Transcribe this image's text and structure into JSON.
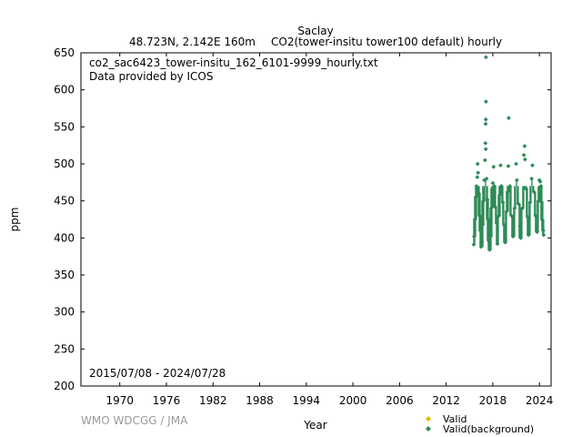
{
  "chart_data": {
    "type": "scatter",
    "title": "Saclay",
    "subtitle_left": "48.723N, 2.142E 160m",
    "subtitle_right": "CO2(tower-insitu tower100 default) hourly",
    "filename": "co2_sac6423_tower-insitu_162_6101-9999_hourly.txt",
    "provider": "Data provided by ICOS",
    "date_range": "2015/07/08 - 2024/07/28",
    "xlabel": "Year",
    "ylabel": "ppm",
    "xlim": [
      1965,
      2025.5
    ],
    "ylim": [
      200,
      650
    ],
    "xticks": [
      "1970",
      "1976",
      "1982",
      "1988",
      "1994",
      "2000",
      "2006",
      "2012",
      "2018",
      "2024"
    ],
    "yticks": [
      "200",
      "250",
      "300",
      "350",
      "400",
      "450",
      "500",
      "550",
      "600",
      "650"
    ],
    "grid": false,
    "legend_position": "bottom-right",
    "series": [
      {
        "name": "Valid",
        "color": "#e6b800",
        "marker": "diamond",
        "points": []
      },
      {
        "name": "Valid(background)",
        "color": "#2e8b57",
        "marker": "diamond",
        "points": [
          [
            2015.55,
            391
          ],
          [
            2015.6,
            402
          ],
          [
            2015.7,
            425
          ],
          [
            2015.8,
            455
          ],
          [
            2015.9,
            470
          ],
          [
            2016.0,
            482
          ],
          [
            2016.05,
            500
          ],
          [
            2016.1,
            488
          ],
          [
            2016.2,
            460
          ],
          [
            2016.3,
            430
          ],
          [
            2016.4,
            410
          ],
          [
            2016.5,
            388
          ],
          [
            2016.6,
            395
          ],
          [
            2016.7,
            418
          ],
          [
            2016.8,
            450
          ],
          [
            2016.9,
            478
          ],
          [
            2017.0,
            505
          ],
          [
            2017.05,
            528
          ],
          [
            2017.1,
            520
          ],
          [
            2017.08,
            554
          ],
          [
            2017.1,
            560
          ],
          [
            2017.12,
            584
          ],
          [
            2017.12,
            644
          ],
          [
            2017.2,
            480
          ],
          [
            2017.3,
            452
          ],
          [
            2017.4,
            425
          ],
          [
            2017.5,
            396
          ],
          [
            2017.6,
            384
          ],
          [
            2017.7,
            402
          ],
          [
            2017.8,
            440
          ],
          [
            2017.9,
            466
          ],
          [
            2018.0,
            474
          ],
          [
            2018.1,
            496
          ],
          [
            2018.2,
            470
          ],
          [
            2018.3,
            442
          ],
          [
            2018.5,
            420
          ],
          [
            2018.6,
            392
          ],
          [
            2018.8,
            430
          ],
          [
            2018.9,
            458
          ],
          [
            2019.0,
            498
          ],
          [
            2019.1,
            470
          ],
          [
            2019.3,
            448
          ],
          [
            2019.5,
            417
          ],
          [
            2019.6,
            394
          ],
          [
            2019.8,
            436
          ],
          [
            2019.9,
            462
          ],
          [
            2020.0,
            497
          ],
          [
            2020.05,
            562
          ],
          [
            2020.2,
            470
          ],
          [
            2020.4,
            430
          ],
          [
            2020.6,
            402
          ],
          [
            2020.8,
            440
          ],
          [
            2021.0,
            500
          ],
          [
            2021.1,
            478
          ],
          [
            2021.3,
            446
          ],
          [
            2021.5,
            416
          ],
          [
            2021.6,
            400
          ],
          [
            2021.8,
            440
          ],
          [
            2022.0,
            512
          ],
          [
            2022.1,
            524
          ],
          [
            2022.15,
            506
          ],
          [
            2022.3,
            466
          ],
          [
            2022.5,
            428
          ],
          [
            2022.6,
            404
          ],
          [
            2022.8,
            448
          ],
          [
            2023.0,
            480
          ],
          [
            2023.1,
            498
          ],
          [
            2023.3,
            462
          ],
          [
            2023.5,
            430
          ],
          [
            2023.7,
            408
          ],
          [
            2023.9,
            450
          ],
          [
            2024.0,
            478
          ],
          [
            2024.1,
            476
          ],
          [
            2024.2,
            470
          ],
          [
            2024.3,
            448
          ],
          [
            2024.4,
            424
          ],
          [
            2024.5,
            410
          ],
          [
            2024.55,
            404
          ]
        ]
      }
    ]
  }
}
